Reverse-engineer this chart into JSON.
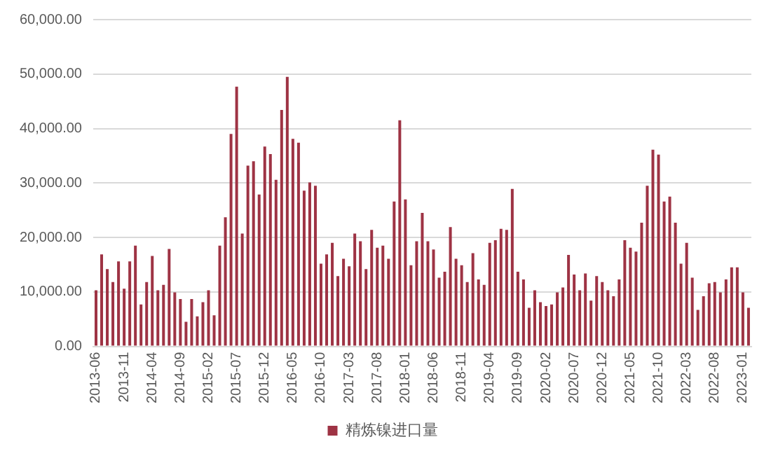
{
  "chart_data": {
    "type": "bar",
    "categories": [
      "2013-06",
      null,
      null,
      null,
      null,
      "2013-11",
      null,
      null,
      null,
      null,
      "2014-04",
      null,
      null,
      null,
      null,
      "2014-09",
      null,
      null,
      null,
      null,
      "2015-02",
      null,
      null,
      null,
      null,
      "2015-07",
      null,
      null,
      null,
      null,
      "2015-12",
      null,
      null,
      null,
      null,
      "2016-05",
      null,
      null,
      null,
      null,
      "2016-10",
      null,
      null,
      null,
      null,
      "2017-03",
      null,
      null,
      null,
      null,
      "2017-08",
      null,
      null,
      null,
      null,
      "2018-01",
      null,
      null,
      null,
      null,
      "2018-06",
      null,
      null,
      null,
      null,
      "2018-11",
      null,
      null,
      null,
      null,
      "2019-04",
      null,
      null,
      null,
      null,
      "2019-09",
      null,
      null,
      null,
      null,
      "2020-02",
      null,
      null,
      null,
      null,
      "2020-07",
      null,
      null,
      null,
      null,
      "2020-12",
      null,
      null,
      null,
      null,
      "2021-05",
      null,
      null,
      null,
      null,
      "2021-10",
      null,
      null,
      null,
      null,
      "2022-03",
      null,
      null,
      null,
      null,
      "2022-08",
      null,
      null,
      null,
      null,
      "2023-01",
      null
    ],
    "series": [
      {
        "name": "精炼镍进口量",
        "color": "#9e3344",
        "values": [
          10300,
          16900,
          14200,
          11800,
          15600,
          10600,
          15600,
          18500,
          7700,
          11800,
          16600,
          10300,
          11300,
          17900,
          9900,
          8700,
          4500,
          8700,
          5500,
          8100,
          10300,
          5700,
          18500,
          23700,
          39000,
          47700,
          20700,
          33200,
          34000,
          27900,
          36700,
          35300,
          30600,
          43400,
          49500,
          38100,
          37400,
          28600,
          30100,
          29500,
          15200,
          16900,
          19000,
          12900,
          16100,
          14700,
          20700,
          19300,
          14200,
          21400,
          18100,
          18500,
          16100,
          26600,
          41500,
          27000,
          14900,
          19300,
          24500,
          19300,
          17800,
          12600,
          13700,
          21900,
          16100,
          14900,
          11800,
          17100,
          12300,
          11300,
          19000,
          19500,
          21600,
          21400,
          28900,
          13700,
          12300,
          7100,
          10300,
          8100,
          7400,
          7700,
          9900,
          10800,
          16800,
          13200,
          10300,
          13400,
          8400,
          12900,
          11800,
          10300,
          9200,
          12300,
          19500,
          18100,
          17400,
          22700,
          29500,
          36100,
          35200,
          26600,
          27500,
          22700,
          15200,
          19000,
          12600,
          6700,
          9200,
          11600,
          11800,
          9900,
          12300,
          14500,
          14500,
          9900,
          7100
        ]
      }
    ],
    "ylim": [
      0,
      60000
    ],
    "yticks": [
      {
        "value": 0,
        "label": "0.00"
      },
      {
        "value": 10000,
        "label": "10,000.00"
      },
      {
        "value": 20000,
        "label": "20,000.00"
      },
      {
        "value": 30000,
        "label": "30,000.00"
      },
      {
        "value": 40000,
        "label": "40,000.00"
      },
      {
        "value": 50000,
        "label": "50,000.00"
      },
      {
        "value": 60000,
        "label": "60,000.00"
      }
    ],
    "grid": "y",
    "legend": "bottom"
  }
}
